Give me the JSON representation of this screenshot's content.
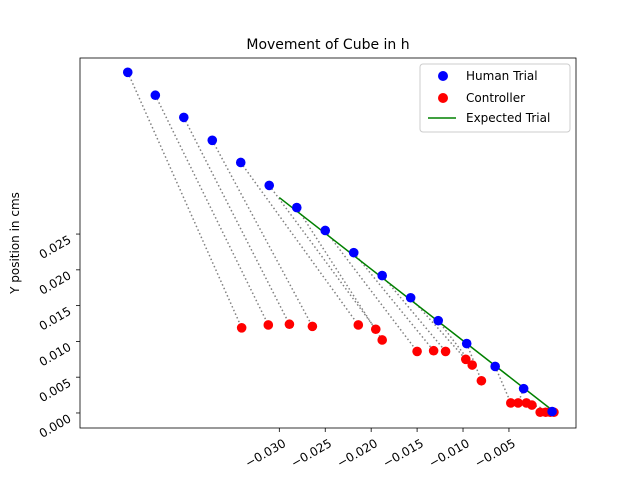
{
  "chart_data": {
    "type": "scatter",
    "title": "Movement of Cube in h",
    "xlabel": "",
    "ylabel": "Y position in cms",
    "x_ticks": [
      -0.03,
      -0.025,
      -0.02,
      -0.015,
      -0.01,
      -0.005
    ],
    "x_tick_labels": [
      "−0.030",
      "−0.025",
      "−0.020",
      "−0.015",
      "−0.010",
      "−0.005"
    ],
    "y_ticks": [
      0.0,
      0.005,
      0.01,
      0.015,
      0.02,
      0.025
    ],
    "y_tick_labels": [
      "0.000",
      "0.005",
      "0.010",
      "0.015",
      "0.020",
      "0.025"
    ],
    "tick_label_rotation_deg": 30,
    "xlim": [
      -0.0517,
      0.0023
    ],
    "ylim": [
      -0.0021,
      0.0496
    ],
    "grid": false,
    "legend_position": "upper right",
    "colors": {
      "human": "#0000ff",
      "controller": "#ff0000",
      "expected": "#008000",
      "connector": "#808080"
    },
    "series": [
      {
        "name": "Human Trial",
        "kind": "scatter",
        "color": "#0000ff",
        "points": [
          [
            -0.0465,
            0.0476
          ],
          [
            -0.0435,
            0.0444
          ],
          [
            -0.0404,
            0.0413
          ],
          [
            -0.0373,
            0.0381
          ],
          [
            -0.0342,
            0.035
          ],
          [
            -0.0311,
            0.0318
          ],
          [
            -0.0281,
            0.0287
          ],
          [
            -0.025,
            0.0255
          ],
          [
            -0.0219,
            0.0224
          ],
          [
            -0.0188,
            0.0192
          ],
          [
            -0.0157,
            0.0161
          ],
          [
            -0.0127,
            0.0129
          ],
          [
            -0.0096,
            0.0097
          ],
          [
            -0.0065,
            0.0065
          ],
          [
            -0.0034,
            0.0034
          ],
          [
            -0.0003,
            0.0002
          ]
        ]
      },
      {
        "name": "Controller",
        "kind": "scatter",
        "color": "#ff0000",
        "points": [
          [
            -0.0341,
            0.0119
          ],
          [
            -0.0312,
            0.0123
          ],
          [
            -0.0289,
            0.0124
          ],
          [
            -0.0264,
            0.0121
          ],
          [
            -0.0214,
            0.0123
          ],
          [
            -0.0195,
            0.0117
          ],
          [
            -0.0188,
            0.0102
          ],
          [
            -0.015,
            0.0086
          ],
          [
            -0.0132,
            0.0087
          ],
          [
            -0.0119,
            0.0086
          ],
          [
            -0.0097,
            0.0075
          ],
          [
            -0.009,
            0.0067
          ],
          [
            -0.008,
            0.0045
          ],
          [
            -0.0048,
            0.0014
          ],
          [
            -0.004,
            0.0014
          ],
          [
            -0.0031,
            0.0014
          ],
          [
            -0.0025,
            0.0011
          ],
          [
            -0.0016,
            0.0001
          ],
          [
            -0.001,
            0.0001
          ],
          [
            -0.0005,
            0.0001
          ],
          [
            -0.0001,
            0.0001
          ]
        ]
      },
      {
        "name": "Expected Trial",
        "kind": "line",
        "color": "#008000",
        "points": [
          [
            -0.03,
            0.0301
          ],
          [
            0.0,
            0.0001
          ]
        ]
      }
    ],
    "connectors": [
      [
        0,
        0
      ],
      [
        1,
        1
      ],
      [
        2,
        2
      ],
      [
        3,
        3
      ],
      [
        4,
        4
      ],
      [
        5,
        5
      ],
      [
        6,
        6
      ],
      [
        7,
        7
      ],
      [
        8,
        8
      ],
      [
        9,
        9
      ],
      [
        10,
        10
      ],
      [
        11,
        11
      ],
      [
        12,
        12
      ],
      [
        13,
        13
      ],
      [
        14,
        14
      ],
      [
        15,
        15
      ]
    ]
  }
}
